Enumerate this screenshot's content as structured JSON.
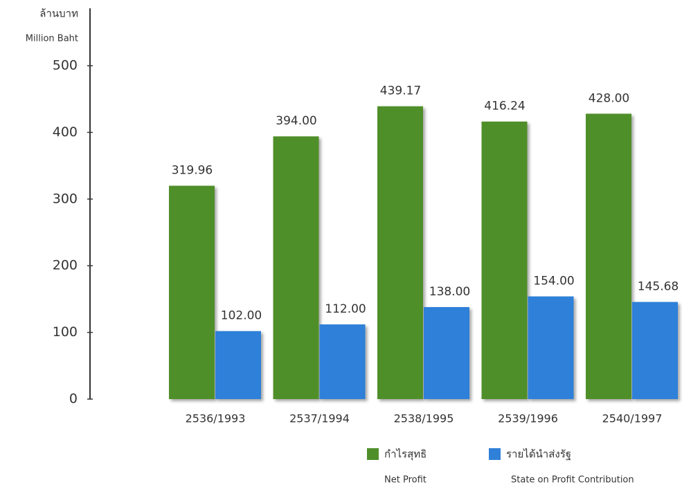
{
  "chart_data": {
    "type": "bar",
    "ylabel_th": "ล้านบาท",
    "ylabel_en": "Million Baht",
    "categories": [
      "2536/1993",
      "2537/1994",
      "2538/1995",
      "2539/1996",
      "2540/1997"
    ],
    "series": [
      {
        "name": "กำไรสุทธิ",
        "name_en": "Net Profit",
        "color": "#4f8f2a",
        "values": [
          319.96,
          394,
          439.17,
          416.24,
          428
        ],
        "value_labels": [
          "319.96",
          "394.00",
          "439.17",
          "416.24",
          "428.00"
        ]
      },
      {
        "name": "รายได้นำส่งรัฐ",
        "name_en": "State on Profit Contribution",
        "color": "#2f80d8",
        "values": [
          102,
          112,
          138,
          154,
          145.68
        ],
        "value_labels": [
          "102.00",
          "112.00",
          "138.00",
          "154.00",
          "145.68"
        ]
      }
    ],
    "ylim": [
      0,
      500
    ],
    "yticks": [
      0,
      100,
      200,
      300,
      400,
      500
    ],
    "grid": false
  }
}
